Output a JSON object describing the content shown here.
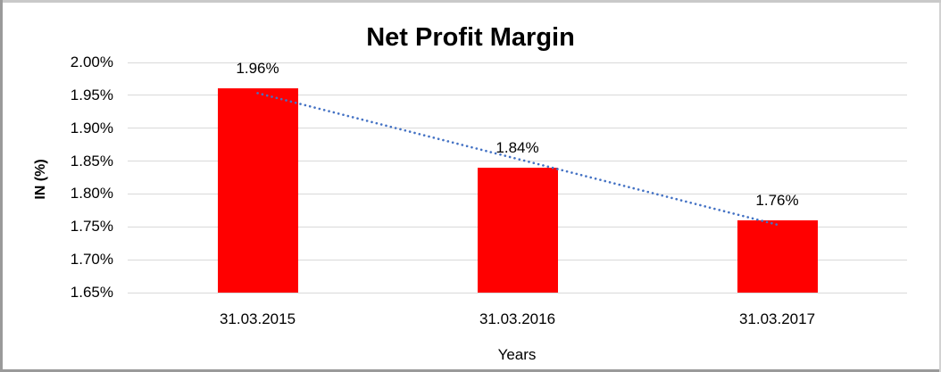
{
  "chart_data": {
    "type": "bar",
    "title": "Net Profit Margin",
    "xlabel": "Years",
    "ylabel": "IN (%)",
    "categories": [
      "31.03.2015",
      "31.03.2016",
      "31.03.2017"
    ],
    "values": [
      1.96,
      1.84,
      1.76
    ],
    "data_labels": [
      "1.96%",
      "1.84%",
      "1.76%"
    ],
    "ylim": [
      1.65,
      2.0
    ],
    "ytick_values": [
      2.0,
      1.95,
      1.9,
      1.85,
      1.8,
      1.75,
      1.7,
      1.65
    ],
    "ytick_labels": [
      "2.00%",
      "1.95%",
      "1.90%",
      "1.85%",
      "1.80%",
      "1.75%",
      "1.70%",
      "1.65%"
    ],
    "grid": true,
    "legend": "none",
    "bar_color": "#FF0000",
    "gridline_color": "#D9D9D9",
    "trendline": {
      "fit": "linear",
      "style": "dotted",
      "color": "#4472C4"
    }
  }
}
